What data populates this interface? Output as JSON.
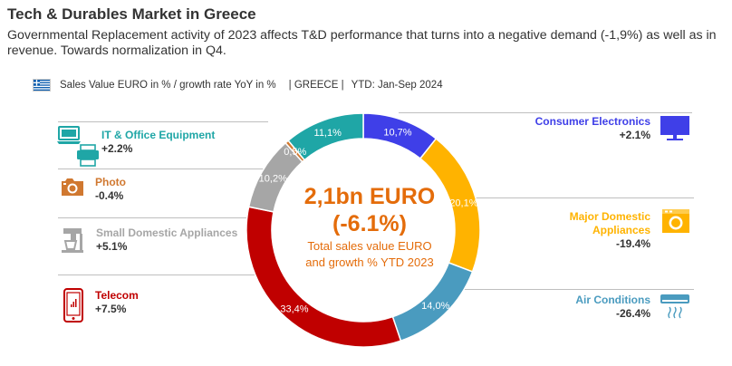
{
  "title": "Tech & Durables Market in Greece",
  "subtitle": "Governmental Replacement activity of 2023 affects T&D performance that turns into a negative demand (-1,9%) as well as in revenue. Towards normalization in Q4.",
  "filters": {
    "measure": "Sales Value EURO in % / growth rate YoY in %",
    "country": "| GREECE |",
    "period": "YTD: Jan-Sep 2024"
  },
  "center": {
    "main": "2,1bn EURO",
    "growth": "(-6.1%)",
    "line1": "Total sales value EURO",
    "line2": "and growth % YTD 2023"
  },
  "chart_data": {
    "type": "pie",
    "donut": true,
    "slices": [
      {
        "name": "Consumer Electronics",
        "value": 10.7,
        "label": "10,7%",
        "color": "#3f3fe8",
        "growth": "+2.1%"
      },
      {
        "name": "Major Domestic Appliances",
        "value": 20.1,
        "label": "20,1%",
        "color": "#ffb300",
        "growth": "-19.4%"
      },
      {
        "name": "Air Conditions",
        "value": 14.0,
        "label": "14,0%",
        "color": "#4a9bbf",
        "growth": "-26.4%"
      },
      {
        "name": "Telecom",
        "value": 33.4,
        "label": "33,4%",
        "color": "#c00000",
        "growth": "+7.5%"
      },
      {
        "name": "Small Domestic Appliances",
        "value": 10.2,
        "label": "10,2%",
        "color": "#a6a6a6",
        "growth": "+5.1%"
      },
      {
        "name": "Photo",
        "value": 0.5,
        "label": "0,5%",
        "color": "#d07830",
        "growth": "-0.4%"
      },
      {
        "name": "IT & Office Equipment",
        "value": 11.1,
        "label": "11,1%",
        "color": "#1fa6a6",
        "growth": "+2.2%"
      }
    ]
  },
  "categories": {
    "it": {
      "label": "IT & Office Equipment",
      "growth": "+2.2%",
      "color": "#1fa6a6"
    },
    "photo": {
      "label": "Photo",
      "growth": "-0.4%",
      "color": "#d07830"
    },
    "sda": {
      "label": "Small Domestic Appliances",
      "growth": "+5.1%",
      "color": "#a6a6a6"
    },
    "telecom": {
      "label": "Telecom",
      "growth": "+7.5%",
      "color": "#c00000"
    },
    "ce": {
      "label": "Consumer Electronics",
      "growth": "+2.1%",
      "color": "#3f3fe8"
    },
    "mda_line1": "Major Domestic",
    "mda_line2": "Appliances",
    "mda": {
      "growth": "-19.4%",
      "color": "#ffb300"
    },
    "ac": {
      "label": "Air Conditions",
      "growth": "-26.4%",
      "color": "#4a9bbf"
    }
  }
}
